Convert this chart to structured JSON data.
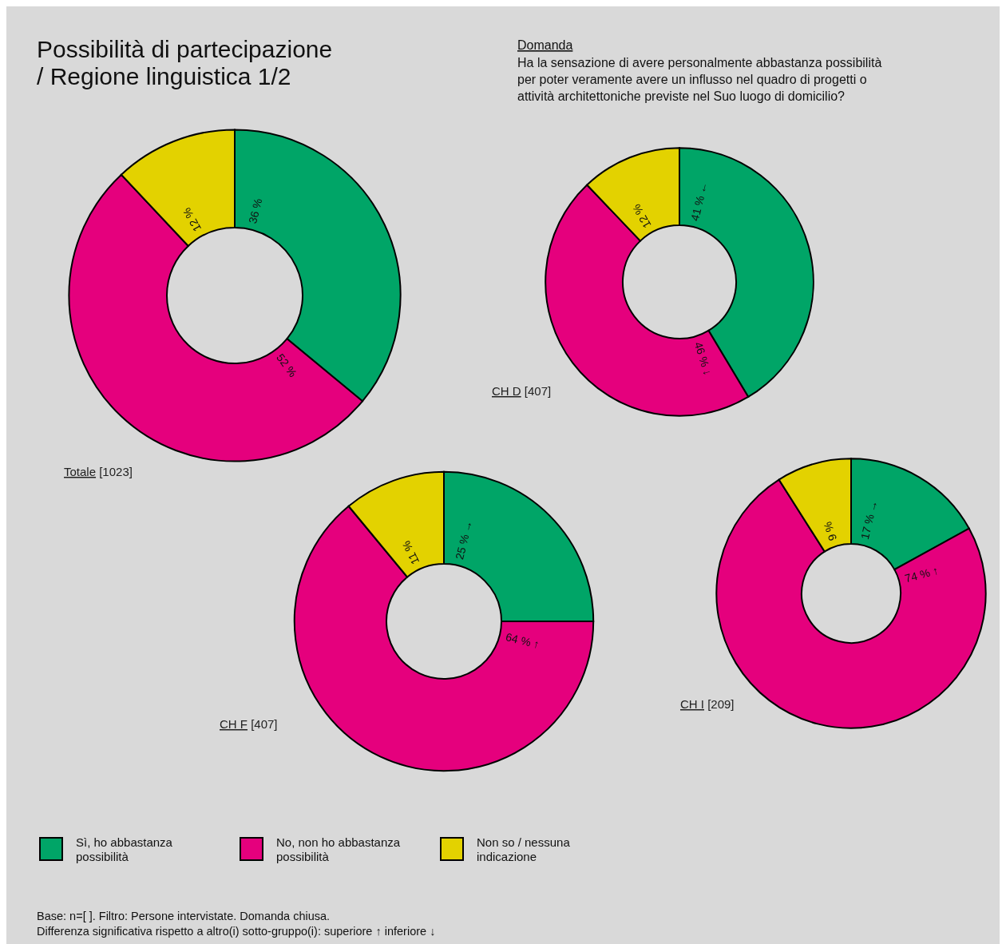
{
  "chart_data": [
    {
      "type": "other",
      "title": "Possibilità di partecipazione / Regione linguistica 1/2",
      "subtitle": "Ha la sensazione di avere personalmente abbastanza possibilità per poter veramente avere un influsso nel quadro di progetti o attività architettoniche previste nel Suo luogo di domicilio?",
      "annotations": [
        "Domanda",
        "Base: n=[ ]. Filtro: Persone intervistate. Domanda chiusa.",
        "Differenza significativa rispetto a altro(i)  sotto-gruppo(i): superiore ↑  inferiore ↓"
      ]
    },
    {
      "type": "donut",
      "title": "Totale [1023]",
      "categories": [
        "Sì, ho abbastanza possibilità",
        "No, non ho abbastanza possibilità",
        "Non so / nessuna indicazione"
      ],
      "values": [
        36,
        52,
        12
      ],
      "colors": [
        "#00a567",
        "#e5007d",
        "#e3d200"
      ],
      "value_labels": [
        "36 %",
        "52 %",
        "12 %"
      ],
      "legend": "bottom"
    },
    {
      "type": "donut",
      "title": "CH D [407]",
      "values": [
        41,
        46,
        12
      ],
      "colors": [
        "#00a567",
        "#e5007d",
        "#e3d200"
      ],
      "value_labels": [
        "41 % ←",
        "46 % ↓",
        "12 %"
      ]
    },
    {
      "type": "donut",
      "title": "CH F [407]",
      "values": [
        25,
        64,
        11
      ],
      "colors": [
        "#00a567",
        "#e5007d",
        "#e3d200"
      ],
      "value_labels": [
        "25 % →",
        "64 %  ↑",
        "11 %"
      ]
    },
    {
      "type": "donut",
      "title": "CH I [209]",
      "values": [
        17,
        74,
        9
      ],
      "colors": [
        "#00a567",
        "#e5007d",
        "#e3d200"
      ],
      "value_labels": [
        "17 % →",
        "74 % ↑",
        "9 %"
      ]
    }
  ]
}
